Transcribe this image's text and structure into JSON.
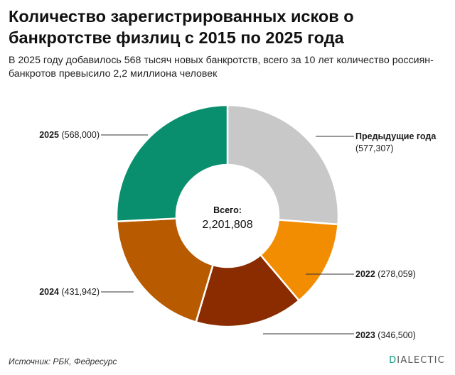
{
  "title": "Количество зарегистрированных исков о банкротстве физлиц с 2015 по 2025 года",
  "subtitle": "В 2025 году добавилось 568 тысяч новых банкротств, всего за 10 лет количество россиян-банкротов превысило 2,2 миллиона человек",
  "source": "Источник: РБК, Федресурс",
  "logo": {
    "accent": "D",
    "rest": "IALECTIC"
  },
  "chart_data": {
    "type": "pie",
    "donut": true,
    "center_label": "Всего:",
    "center_value": "2,201,808",
    "slices": [
      {
        "label": "Предыдущие года",
        "value": 577307,
        "value_text": "(577,307)",
        "color": "#c8c8c8"
      },
      {
        "label": "2022",
        "value": 278059,
        "value_text": "(278,059)",
        "color": "#f28c00"
      },
      {
        "label": "2023",
        "value": 346500,
        "value_text": "(346,500)",
        "color": "#8a2b00"
      },
      {
        "label": "2024",
        "value": 431942,
        "value_text": "(431,942)",
        "color": "#b85a00"
      },
      {
        "label": "2025",
        "value": 568000,
        "value_text": "(568,000)",
        "color": "#0a8f6e"
      }
    ]
  }
}
